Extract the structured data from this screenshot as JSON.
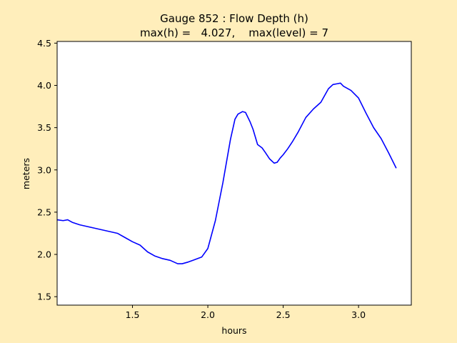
{
  "chart_data": {
    "type": "line",
    "title_line1": "Gauge 852 : Flow Depth (h)",
    "title_line2": "max(h) =   4.027,    max(level) = 7",
    "xlabel": "hours",
    "ylabel": "meters",
    "xlim": [
      1.0,
      3.35
    ],
    "ylim": [
      1.4,
      4.52
    ],
    "xticks": [
      1.5,
      2.0,
      2.5,
      3.0
    ],
    "xtick_labels": [
      "1.5",
      "2.0",
      "2.5",
      "3.0"
    ],
    "yticks": [
      1.5,
      2.0,
      2.5,
      3.0,
      3.5,
      4.0,
      4.5
    ],
    "ytick_labels": [
      "1.5",
      "2.0",
      "2.5",
      "3.0",
      "3.5",
      "4.0",
      "4.5"
    ],
    "grid": false,
    "line_color": "#0000ff",
    "background_color": "#ffeebb",
    "plot_background": "#ffffff",
    "series": [
      {
        "x": [
          1.0,
          1.04,
          1.07,
          1.1,
          1.15,
          1.2,
          1.25,
          1.3,
          1.35,
          1.4,
          1.45,
          1.5,
          1.55,
          1.6,
          1.65,
          1.7,
          1.75,
          1.8,
          1.83,
          1.87,
          1.9,
          1.93,
          1.96,
          2.0,
          2.05,
          2.1,
          2.15,
          2.18,
          2.2,
          2.23,
          2.25,
          2.28,
          2.3,
          2.33,
          2.36,
          2.38,
          2.41,
          2.44,
          2.46,
          2.48,
          2.5,
          2.53,
          2.56,
          2.6,
          2.65,
          2.7,
          2.75,
          2.8,
          2.83,
          2.86,
          2.88,
          2.9,
          2.95,
          3.0,
          3.05,
          3.1,
          3.15,
          3.2,
          3.25
        ],
        "y": [
          2.41,
          2.4,
          2.41,
          2.38,
          2.35,
          2.33,
          2.31,
          2.29,
          2.27,
          2.25,
          2.2,
          2.15,
          2.11,
          2.03,
          1.98,
          1.95,
          1.93,
          1.89,
          1.89,
          1.91,
          1.93,
          1.95,
          1.97,
          2.07,
          2.4,
          2.85,
          3.36,
          3.6,
          3.66,
          3.69,
          3.68,
          3.57,
          3.48,
          3.3,
          3.26,
          3.21,
          3.13,
          3.08,
          3.09,
          3.14,
          3.18,
          3.25,
          3.33,
          3.45,
          3.62,
          3.72,
          3.8,
          3.96,
          4.01,
          4.02,
          4.027,
          3.99,
          3.94,
          3.85,
          3.67,
          3.5,
          3.37,
          3.2,
          3.02
        ]
      }
    ]
  }
}
